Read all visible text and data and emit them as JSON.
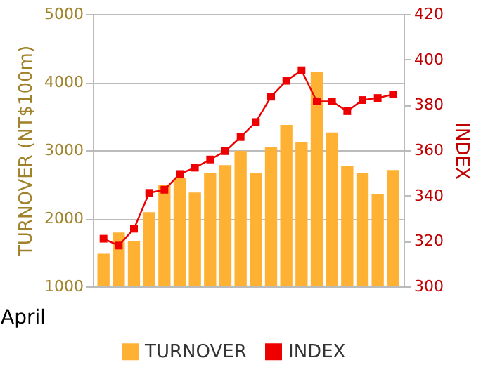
{
  "chart_data": {
    "type": "bar",
    "categories": [
      null,
      null,
      null,
      null,
      null,
      null,
      null,
      null,
      null,
      null,
      null,
      null,
      null,
      null,
      null,
      null,
      null,
      null,
      null,
      null
    ],
    "xlabel": "April",
    "ylabel": "TURNOVER (NT$100m)",
    "y2label": "INDEX",
    "series": [
      {
        "name": "TURNOVER",
        "color": "#ffb133",
        "values": [
          1480,
          1790,
          1670,
          2090,
          2490,
          2590,
          2380,
          2660,
          2780,
          2990,
          2660,
          3050,
          3370,
          3120,
          4150,
          3260,
          2770,
          2660,
          2350,
          2710
        ]
      },
      {
        "name": "INDEX",
        "type": "line",
        "axis": "y2",
        "color": "#ee0000",
        "values": [
          321,
          318,
          325.4,
          341.2,
          342.6,
          349.5,
          352.3,
          355.9,
          359.6,
          365.8,
          372.4,
          383.6,
          390.6,
          395.2,
          381.5,
          381.5,
          377.2,
          382.1,
          383,
          384.6
        ]
      }
    ],
    "ylim": [
      1000,
      5000
    ],
    "yticks": [
      1000,
      2000,
      3000,
      4000,
      5000
    ],
    "y2lim": [
      300,
      420
    ],
    "y2ticks": [
      300,
      320,
      340,
      360,
      380,
      400,
      420
    ],
    "grid": "y",
    "legend": "bottom",
    "marker": "square",
    "line_style": "solid"
  }
}
